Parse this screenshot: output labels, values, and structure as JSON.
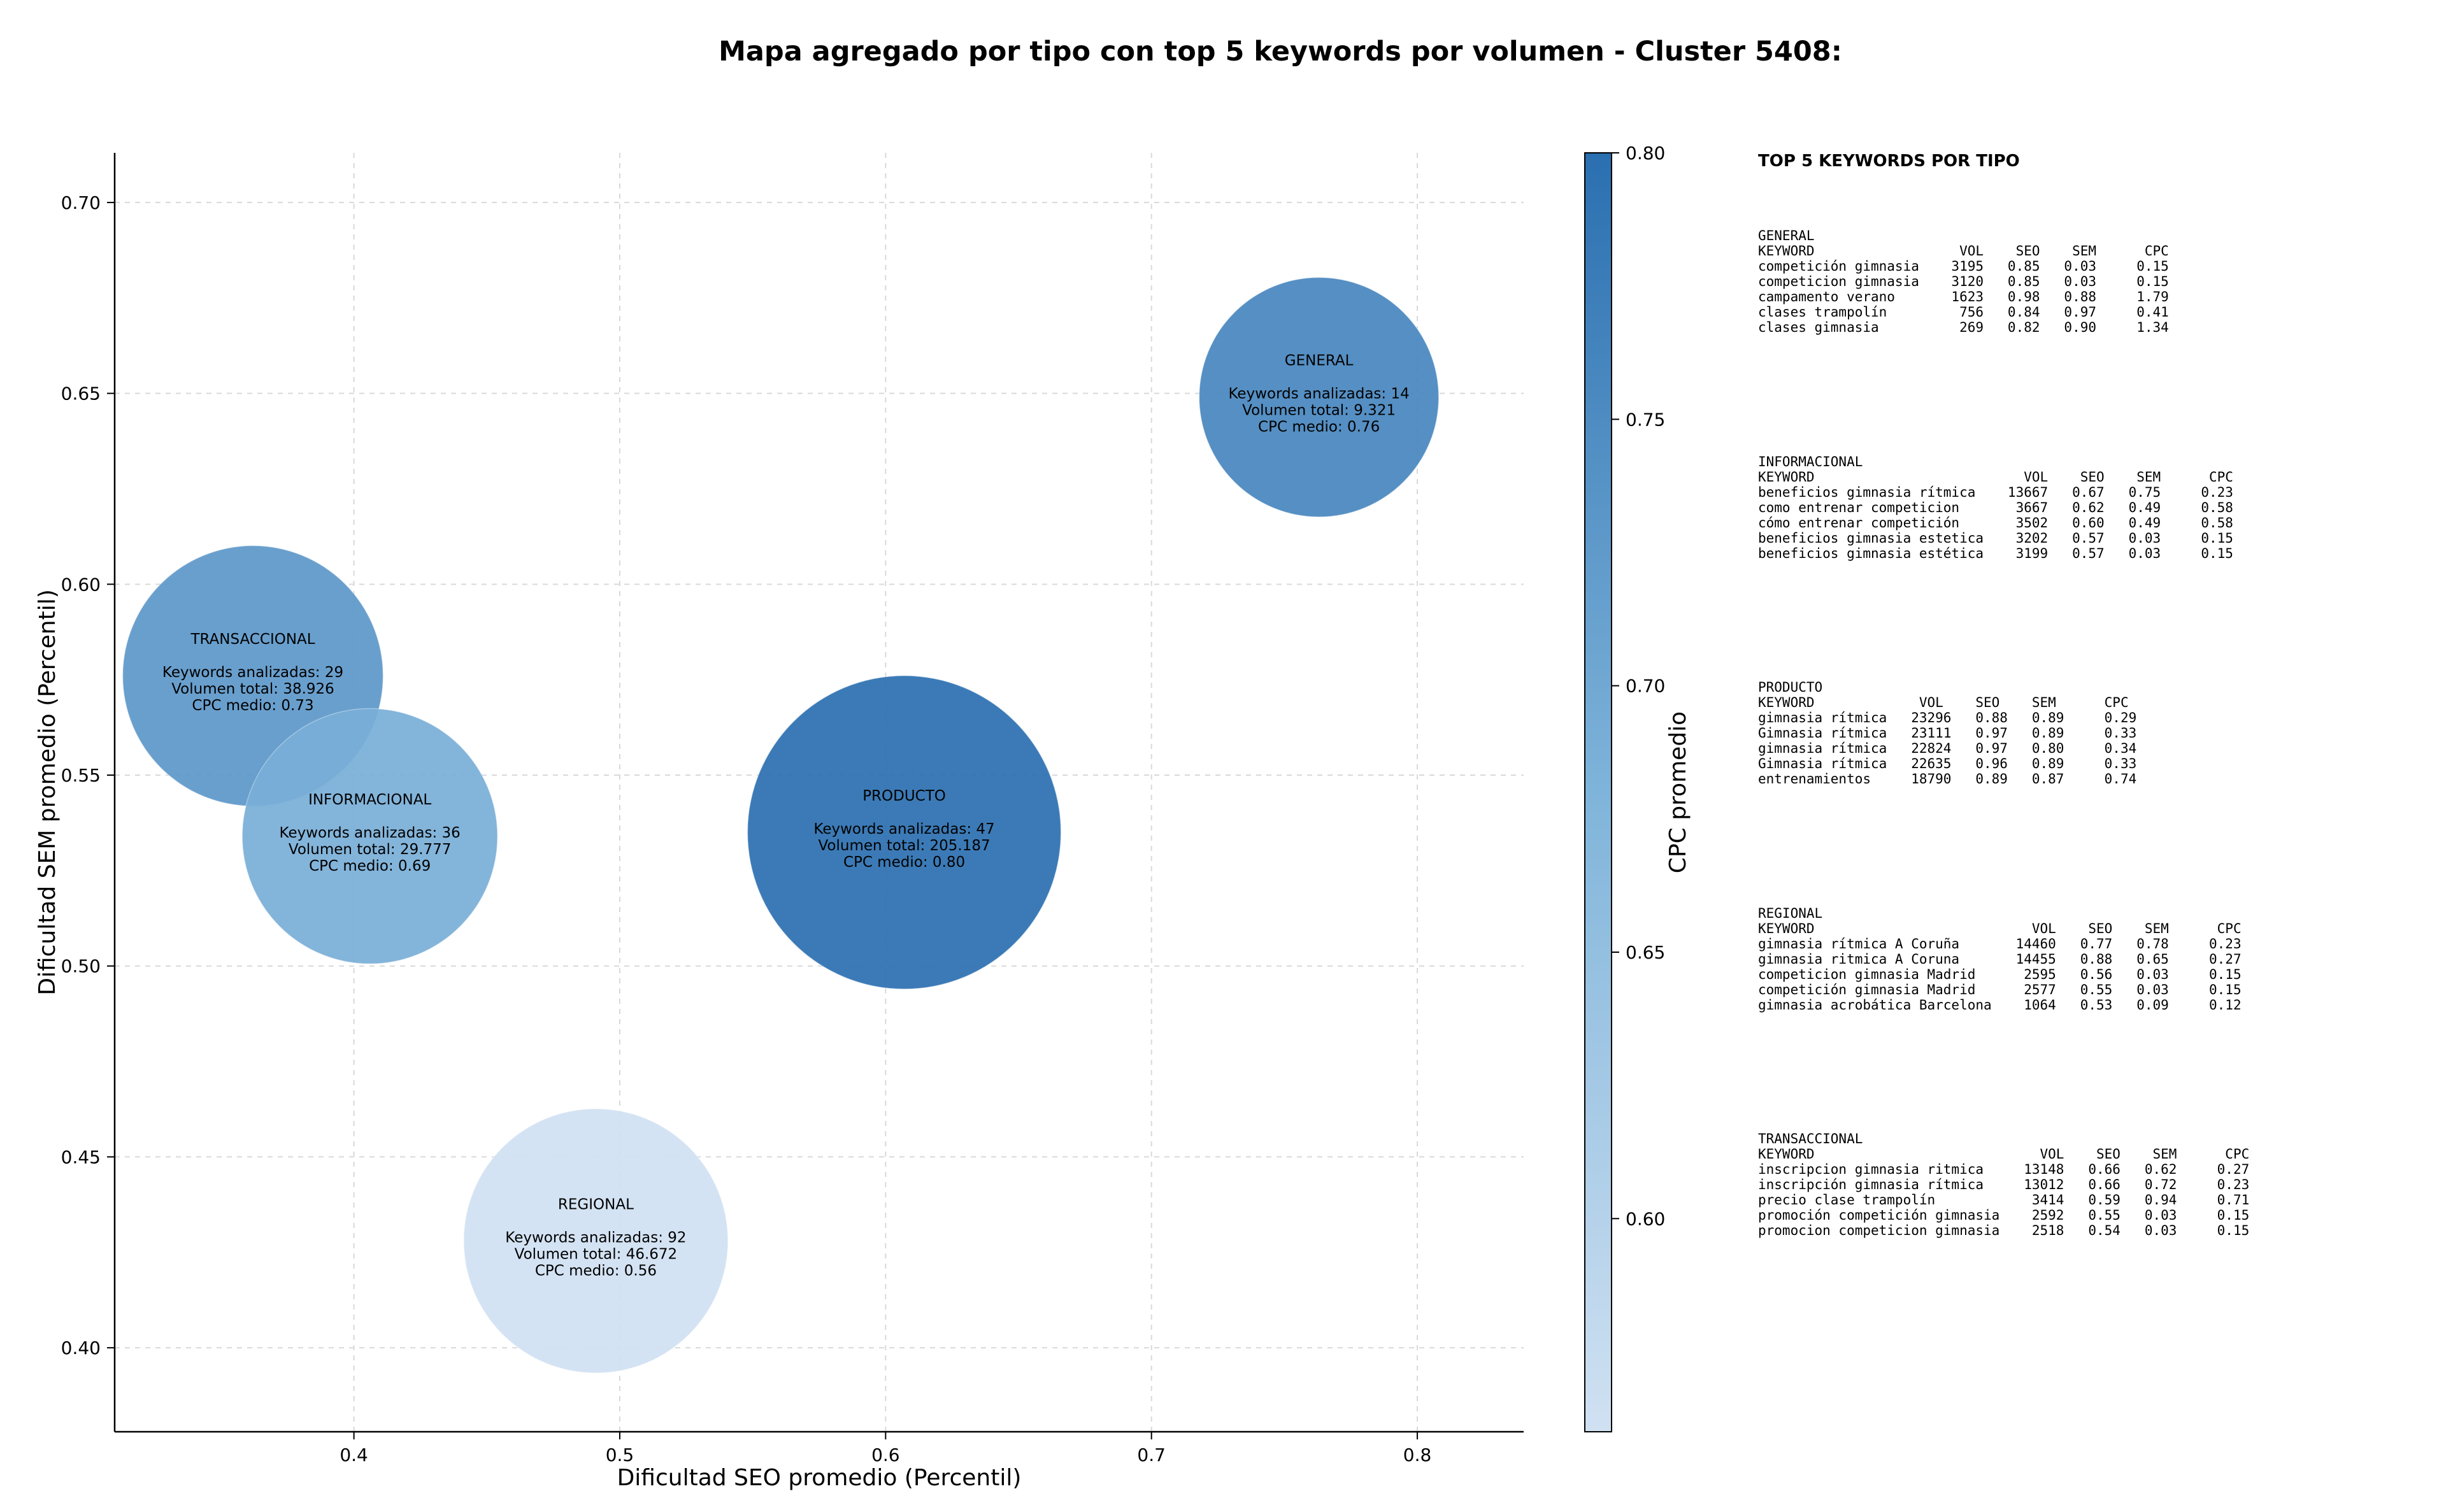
{
  "chart_data": {
    "type": "scatter",
    "title": "Mapa agregado por tipo con top 5 keywords por volumen - Cluster 5408:",
    "xlabel": "Dificultad SEO promedio (Percentil)",
    "ylabel": "Dificultad SEM promedio (Percentil)",
    "xlim": [
      0.31,
      0.84
    ],
    "ylim": [
      0.378,
      0.713
    ],
    "xticks": [
      0.4,
      0.5,
      0.6,
      0.7,
      0.8
    ],
    "xtick_labels": [
      "0.4",
      "0.5",
      "0.6",
      "0.7",
      "0.8"
    ],
    "yticks": [
      0.4,
      0.45,
      0.5,
      0.55,
      0.6,
      0.65,
      0.7
    ],
    "ytick_labels": [
      "0.40",
      "0.45",
      "0.50",
      "0.55",
      "0.60",
      "0.65",
      "0.70"
    ],
    "grid": true,
    "colorbar": {
      "label": "CPC promedio",
      "range": [
        0.56,
        0.8
      ],
      "ticks": [
        0.6,
        0.65,
        0.7,
        0.75,
        0.8
      ],
      "tick_labels": [
        "0.60",
        "0.65",
        "0.70",
        "0.75",
        "0.80"
      ],
      "color_low": "#d0e1f2",
      "color_high": "#2a6fb0"
    },
    "points": [
      {
        "type": "GENERAL",
        "x": 0.763,
        "y": 0.649,
        "keywords_label": "Keywords analizadas: 14",
        "volume_label": "Volumen total: 9.321",
        "cpc_label": "CPC medio: 0.76",
        "keywords": 14,
        "volume": 9321,
        "cpc": 0.76
      },
      {
        "type": "TRANSACCIONAL",
        "x": 0.362,
        "y": 0.576,
        "keywords_label": "Keywords analizadas: 29",
        "volume_label": "Volumen total: 38.926",
        "cpc_label": "CPC medio: 0.73",
        "keywords": 29,
        "volume": 38926,
        "cpc": 0.73
      },
      {
        "type": "INFORMACIONAL",
        "x": 0.406,
        "y": 0.534,
        "keywords_label": "Keywords analizadas: 36",
        "volume_label": "Volumen total: 29.777",
        "cpc_label": "CPC medio: 0.69",
        "keywords": 36,
        "volume": 29777,
        "cpc": 0.69
      },
      {
        "type": "PRODUCTO",
        "x": 0.607,
        "y": 0.535,
        "keywords_label": "Keywords analizadas: 47",
        "volume_label": "Volumen total: 205.187",
        "cpc_label": "CPC medio: 0.80",
        "keywords": 47,
        "volume": 205187,
        "cpc": 0.8
      },
      {
        "type": "REGIONAL",
        "x": 0.491,
        "y": 0.428,
        "keywords_label": "Keywords analizadas: 92",
        "volume_label": "Volumen total: 46.672",
        "cpc_label": "CPC medio: 0.56",
        "keywords": 92,
        "volume": 46672,
        "cpc": 0.56
      }
    ]
  },
  "keyword_panel": {
    "heading": "TOP 5 KEYWORDS POR TIPO",
    "groups": [
      {
        "name": "GENERAL",
        "lines": [
          "KEYWORD                  VOL    SEO    SEM      CPC",
          "competición gimnasia    3195   0.85   0.03     0.15",
          "competicion gimnasia    3120   0.85   0.03     0.15",
          "campamento verano       1623   0.98   0.88     1.79",
          "clases trampolín         756   0.84   0.97     0.41",
          "clases gimnasia          269   0.82   0.90     1.34"
        ]
      },
      {
        "name": "INFORMACIONAL",
        "lines": [
          "KEYWORD                          VOL    SEO    SEM      CPC",
          "beneficios gimnasia rítmica    13667   0.67   0.75     0.23",
          "como entrenar competicion       3667   0.62   0.49     0.58",
          "cómo entrenar competición       3502   0.60   0.49     0.58",
          "beneficios gimnasia estetica    3202   0.57   0.03     0.15",
          "beneficios gimnasia estética    3199   0.57   0.03     0.15"
        ]
      },
      {
        "name": "PRODUCTO",
        "lines": [
          "KEYWORD             VOL    SEO    SEM      CPC",
          "gimnasia rítmica   23296   0.88   0.89     0.29",
          "Gimnasia rítmica   23111   0.97   0.89     0.33",
          "gimnasia rítmica   22824   0.97   0.80     0.34",
          "Gimnasia rítmica   22635   0.96   0.89     0.33",
          "entrenamientos     18790   0.89   0.87     0.74"
        ]
      },
      {
        "name": "REGIONAL",
        "lines": [
          "KEYWORD                           VOL    SEO    SEM      CPC",
          "gimnasia rítmica A Coruña       14460   0.77   0.78     0.23",
          "gimnasia ritmica A Coruna       14455   0.88   0.65     0.27",
          "competicion gimnasia Madrid      2595   0.56   0.03     0.15",
          "competición gimnasia Madrid      2577   0.55   0.03     0.15",
          "gimnasia acrobática Barcelona    1064   0.53   0.09     0.12"
        ]
      },
      {
        "name": "TRANSACCIONAL",
        "lines": [
          "KEYWORD                            VOL    SEO    SEM      CPC",
          "inscripcion gimnasia ritmica     13148   0.66   0.62     0.27",
          "inscripción gimnasia rítmica     13012   0.66   0.72     0.23",
          "precio clase trampolín            3414   0.59   0.94     0.71",
          "promoción competición gimnasia    2592   0.55   0.03     0.15",
          "promocion competicion gimnasia    2518   0.54   0.03     0.15"
        ]
      }
    ]
  }
}
